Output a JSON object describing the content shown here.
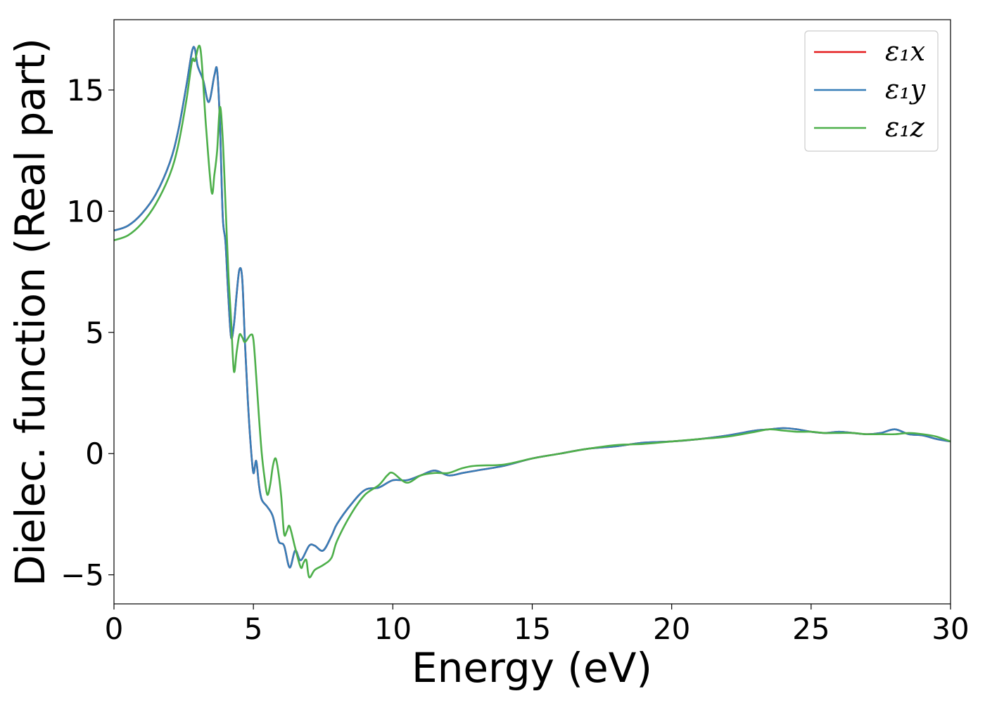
{
  "chart_data": {
    "type": "line",
    "xlabel": "Energy (eV)",
    "ylabel": "Dielec. function (Real part)",
    "xlim": [
      0,
      30
    ],
    "ylim": [
      -6.2,
      17.9
    ],
    "xticks": [
      0,
      5,
      10,
      15,
      20,
      25,
      30
    ],
    "xtick_labels": [
      "0",
      "5",
      "10",
      "15",
      "20",
      "25",
      "30"
    ],
    "yticks": [
      -5,
      0,
      5,
      10,
      15
    ],
    "ytick_labels": [
      "−5",
      "0",
      "5",
      "10",
      "15"
    ],
    "grid": false,
    "legend_position": "top-right",
    "series": [
      {
        "name": "ε₁x",
        "color": "#e41a1c",
        "x": [
          0,
          0.5,
          1,
          1.5,
          2,
          2.3,
          2.6,
          2.8,
          2.9,
          3.0,
          3.2,
          3.4,
          3.6,
          3.7,
          3.8,
          3.9,
          4.0,
          4.1,
          4.2,
          4.3,
          4.4,
          4.5,
          4.6,
          4.7,
          4.8,
          4.9,
          5.0,
          5.1,
          5.2,
          5.3,
          5.5,
          5.7,
          5.9,
          6.1,
          6.3,
          6.5,
          6.7,
          7.0,
          7.2,
          7.5,
          7.8,
          8.0,
          8.5,
          9.0,
          9.5,
          10,
          10.5,
          11,
          11.5,
          12,
          12.5,
          13,
          14,
          15,
          16,
          17,
          18,
          19,
          20,
          21,
          22,
          23,
          23.5,
          24,
          24.5,
          25,
          25.5,
          26,
          26.5,
          27,
          27.5,
          28,
          28.5,
          29,
          29.5,
          30
        ],
        "y": [
          9.2,
          9.4,
          9.9,
          10.7,
          12.0,
          13.3,
          15.2,
          16.6,
          16.7,
          16.0,
          15.4,
          14.5,
          15.6,
          15.8,
          13.6,
          9.8,
          8.7,
          6.5,
          4.8,
          5.3,
          6.6,
          7.6,
          7.2,
          4.5,
          2.2,
          0.4,
          -0.8,
          -0.3,
          -1.3,
          -1.9,
          -2.2,
          -2.6,
          -3.6,
          -3.8,
          -4.7,
          -4.0,
          -4.4,
          -3.8,
          -3.8,
          -4.0,
          -3.4,
          -2.9,
          -2.1,
          -1.5,
          -1.4,
          -1.1,
          -1.1,
          -0.9,
          -0.7,
          -0.9,
          -0.8,
          -0.7,
          -0.5,
          -0.2,
          0.0,
          0.2,
          0.3,
          0.45,
          0.5,
          0.6,
          0.75,
          0.95,
          1.0,
          1.05,
          1.0,
          0.9,
          0.85,
          0.9,
          0.85,
          0.8,
          0.85,
          1.0,
          0.8,
          0.75,
          0.6,
          0.5
        ]
      },
      {
        "name": "ε₁y",
        "color": "#377eb8",
        "x": [
          0,
          0.5,
          1,
          1.5,
          2,
          2.3,
          2.6,
          2.8,
          2.9,
          3.0,
          3.2,
          3.4,
          3.6,
          3.7,
          3.8,
          3.9,
          4.0,
          4.1,
          4.2,
          4.3,
          4.4,
          4.5,
          4.6,
          4.7,
          4.8,
          4.9,
          5.0,
          5.1,
          5.2,
          5.3,
          5.5,
          5.7,
          5.9,
          6.1,
          6.3,
          6.5,
          6.7,
          7.0,
          7.2,
          7.5,
          7.8,
          8.0,
          8.5,
          9.0,
          9.5,
          10,
          10.5,
          11,
          11.5,
          12,
          12.5,
          13,
          14,
          15,
          16,
          17,
          18,
          19,
          20,
          21,
          22,
          23,
          23.5,
          24,
          24.5,
          25,
          25.5,
          26,
          26.5,
          27,
          27.5,
          28,
          28.5,
          29,
          29.5,
          30
        ],
        "y": [
          9.2,
          9.4,
          9.9,
          10.7,
          12.0,
          13.3,
          15.2,
          16.6,
          16.7,
          16.0,
          15.4,
          14.5,
          15.6,
          15.8,
          13.6,
          9.8,
          8.7,
          6.5,
          4.8,
          5.3,
          6.6,
          7.6,
          7.2,
          4.5,
          2.2,
          0.4,
          -0.8,
          -0.3,
          -1.3,
          -1.9,
          -2.2,
          -2.6,
          -3.6,
          -3.8,
          -4.7,
          -4.0,
          -4.4,
          -3.8,
          -3.8,
          -4.0,
          -3.4,
          -2.9,
          -2.1,
          -1.5,
          -1.4,
          -1.1,
          -1.1,
          -0.9,
          -0.7,
          -0.9,
          -0.8,
          -0.7,
          -0.5,
          -0.2,
          0.0,
          0.2,
          0.3,
          0.45,
          0.5,
          0.6,
          0.75,
          0.95,
          1.0,
          1.05,
          1.0,
          0.9,
          0.85,
          0.9,
          0.85,
          0.8,
          0.85,
          1.0,
          0.8,
          0.75,
          0.6,
          0.5
        ]
      },
      {
        "name": "ε₁z",
        "color": "#4daf4a",
        "x": [
          0,
          0.5,
          1,
          1.5,
          2,
          2.3,
          2.6,
          2.8,
          2.9,
          3.1,
          3.3,
          3.5,
          3.6,
          3.7,
          3.8,
          3.9,
          4.0,
          4.1,
          4.2,
          4.3,
          4.4,
          4.5,
          4.6,
          4.7,
          4.9,
          5.0,
          5.1,
          5.2,
          5.3,
          5.4,
          5.5,
          5.6,
          5.7,
          5.8,
          5.9,
          6.0,
          6.1,
          6.2,
          6.3,
          6.5,
          6.7,
          6.8,
          6.9,
          7.0,
          7.2,
          7.5,
          7.8,
          8.0,
          8.5,
          9.0,
          9.5,
          9.8,
          10,
          10.5,
          11,
          11.5,
          12,
          12.5,
          13,
          14,
          15,
          16,
          17,
          18,
          19,
          20,
          21,
          22,
          23,
          23.5,
          24,
          24.5,
          25,
          25.5,
          26,
          26.5,
          27,
          27.5,
          28,
          28.5,
          29,
          29.5,
          30
        ],
        "y": [
          8.8,
          9.0,
          9.5,
          10.3,
          11.5,
          12.7,
          14.6,
          16.2,
          16.2,
          16.7,
          13.5,
          10.8,
          11.5,
          12.5,
          14.3,
          13.0,
          10.3,
          7.5,
          5.5,
          3.4,
          4.2,
          4.9,
          4.8,
          4.6,
          4.9,
          4.7,
          3.2,
          1.5,
          0.0,
          -1.0,
          -1.7,
          -1.3,
          -0.5,
          -0.2,
          -0.8,
          -1.8,
          -3.3,
          -3.2,
          -3.0,
          -3.9,
          -4.7,
          -4.5,
          -4.4,
          -5.1,
          -4.8,
          -4.6,
          -4.3,
          -3.6,
          -2.5,
          -1.7,
          -1.3,
          -0.9,
          -0.8,
          -1.2,
          -0.9,
          -0.8,
          -0.8,
          -0.6,
          -0.5,
          -0.45,
          -0.2,
          0.0,
          0.2,
          0.35,
          0.4,
          0.5,
          0.6,
          0.7,
          0.9,
          1.0,
          0.95,
          0.9,
          0.9,
          0.85,
          0.85,
          0.85,
          0.8,
          0.8,
          0.8,
          0.85,
          0.8,
          0.7,
          0.5
        ]
      }
    ]
  }
}
